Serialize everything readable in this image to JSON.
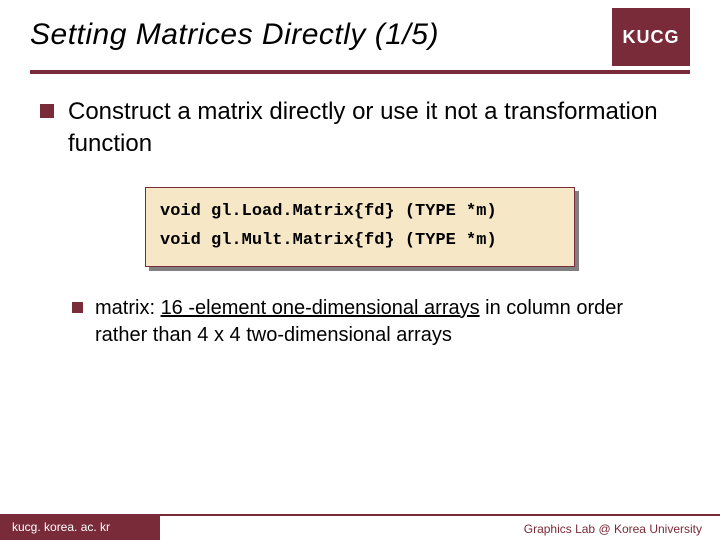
{
  "header": {
    "title": "Setting Matrices Directly (1/5)",
    "logo": "KUCG"
  },
  "colors": {
    "accent": "#7a2b3a",
    "code_bg": "#f6e7c6",
    "shadow": "#808080"
  },
  "bullets": {
    "main": "Construct a matrix directly or use it not a transformation function",
    "sub_prefix": "matrix: ",
    "sub_underlined": "16 -element one-dimensional arrays",
    "sub_suffix": " in column order rather than 4 x 4 two-dimensional arrays"
  },
  "code": {
    "line1": "void gl.Load.Matrix{fd} (TYPE *m)",
    "line2": "void gl.Mult.Matrix{fd} (TYPE *m)"
  },
  "footer": {
    "left": "kucg. korea. ac. kr",
    "right": "Graphics Lab @ Korea University"
  }
}
